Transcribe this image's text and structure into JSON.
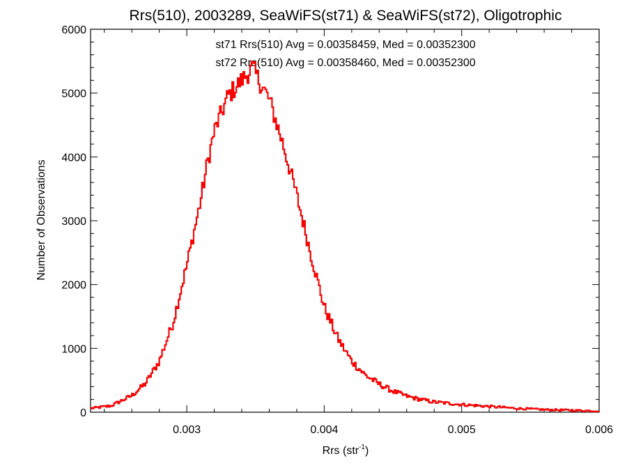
{
  "chart_data": {
    "type": "histogram",
    "title": "Rrs(510), 2003289, SeaWiFS(st71) & SeaWiFS(st72), Oligotrophic",
    "xlabel_base": "Rrs (str",
    "xlabel_sup": "-1",
    "xlabel_close": ")",
    "ylabel": "Number of Observations",
    "xlim": [
      0.0023,
      0.006
    ],
    "ylim": [
      0,
      6000
    ],
    "xticks": [
      0.003,
      0.004,
      0.005,
      0.006
    ],
    "xtick_labels": [
      "0.003",
      "0.004",
      "0.005",
      "0.006"
    ],
    "yticks": [
      0,
      1000,
      2000,
      3000,
      4000,
      5000,
      6000
    ],
    "ytick_labels": [
      "0",
      "1000",
      "2000",
      "3000",
      "4000",
      "5000",
      "6000"
    ],
    "annotations": [
      {
        "text": "st71 Rrs(510) Avg = 0.00358459, Med = 0.00352300",
        "color": "#000000"
      },
      {
        "text": "st72 Rrs(510) Avg = 0.00358460, Med = 0.00352300",
        "color": "#ff0000"
      }
    ],
    "series": [
      {
        "name": "st71",
        "color": "#000000"
      },
      {
        "name": "st72",
        "color": "#ff0000"
      }
    ],
    "bin_width": 1e-05,
    "bins_start": 0.0023,
    "key_points": [
      [
        0.0023,
        60
      ],
      [
        0.00245,
        100
      ],
      [
        0.0026,
        260
      ],
      [
        0.0027,
        450
      ],
      [
        0.0028,
        800
      ],
      [
        0.0029,
        1400
      ],
      [
        0.003,
        2300
      ],
      [
        0.0031,
        3300
      ],
      [
        0.00315,
        3900
      ],
      [
        0.0032,
        4400
      ],
      [
        0.0033,
        4950
      ],
      [
        0.0034,
        5200
      ],
      [
        0.00348,
        5400
      ],
      [
        0.0035,
        5300
      ],
      [
        0.0036,
        4900
      ],
      [
        0.0037,
        4200
      ],
      [
        0.0038,
        3400
      ],
      [
        0.0039,
        2500
      ],
      [
        0.004,
        1650
      ],
      [
        0.0041,
        1150
      ],
      [
        0.0042,
        800
      ],
      [
        0.0043,
        580
      ],
      [
        0.0044,
        440
      ],
      [
        0.0045,
        330
      ],
      [
        0.0046,
        250
      ],
      [
        0.0047,
        200
      ],
      [
        0.0048,
        160
      ],
      [
        0.005,
        120
      ],
      [
        0.0052,
        90
      ],
      [
        0.0054,
        60
      ],
      [
        0.0056,
        40
      ],
      [
        0.0058,
        30
      ],
      [
        0.006,
        20
      ]
    ]
  }
}
